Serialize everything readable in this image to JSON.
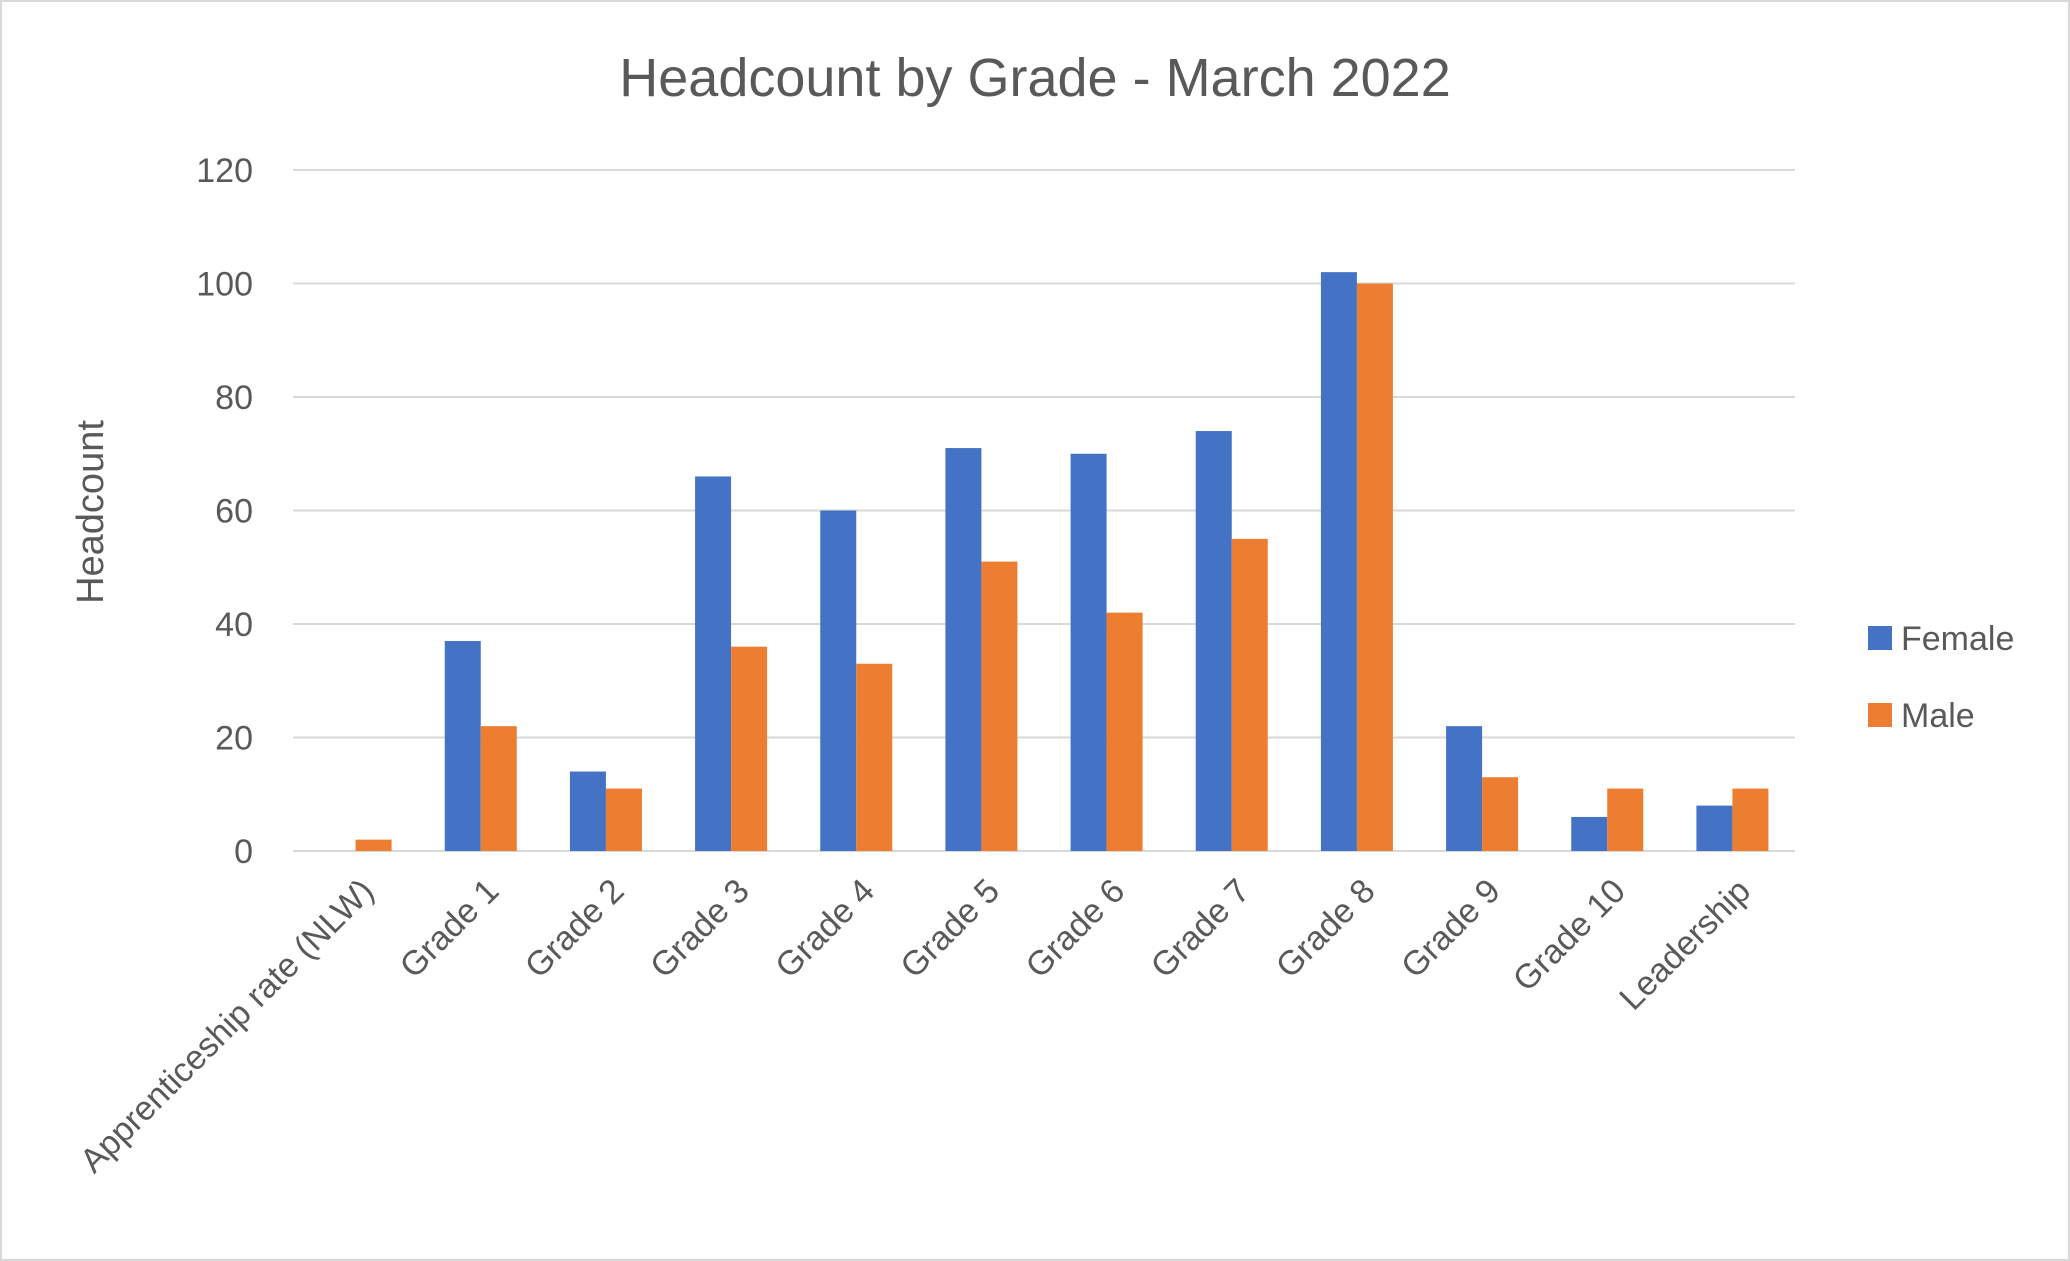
{
  "chart_data": {
    "type": "bar",
    "title": "Headcount by Grade - March 2022",
    "ylabel": "Headcount",
    "xlabel": "",
    "ylim": [
      0,
      120
    ],
    "yticks": [
      0,
      20,
      40,
      60,
      80,
      100,
      120
    ],
    "grid": true,
    "legend_position": "right",
    "categories": [
      "Apprenticeship rate (NLW)",
      "Grade 1",
      "Grade 2",
      "Grade 3",
      "Grade 4",
      "Grade 5",
      "Grade 6",
      "Grade 7",
      "Grade 8",
      "Grade 9",
      "Grade 10",
      "Leadership"
    ],
    "series": [
      {
        "name": "Female",
        "color": "#4472C4",
        "values": [
          0,
          37,
          14,
          66,
          60,
          71,
          70,
          74,
          102,
          22,
          6,
          8
        ]
      },
      {
        "name": "Male",
        "color": "#ED7D31",
        "values": [
          2,
          22,
          11,
          36,
          33,
          51,
          42,
          55,
          100,
          13,
          11,
          11
        ]
      }
    ]
  }
}
